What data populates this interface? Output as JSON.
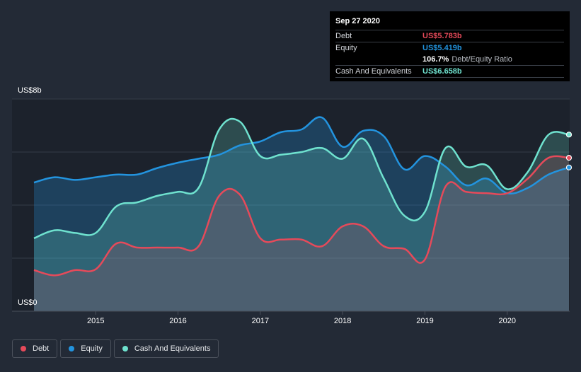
{
  "tooltip": {
    "date": "Sep 27 2020",
    "debt_label": "Debt",
    "debt_value": "US$5.783b",
    "equity_label": "Equity",
    "equity_value": "US$5.419b",
    "ratio_value": "106.7%",
    "ratio_label": "Debt/Equity Ratio",
    "cash_label": "Cash And Equivalents",
    "cash_value": "US$6.658b"
  },
  "colors": {
    "debt": "#e64a5a",
    "equity": "#2394df",
    "cash": "#6fe2cf",
    "background": "#232a36"
  },
  "chart_data": {
    "type": "area",
    "ylabel_top": "US$8b",
    "ylabel_bottom": "US$0",
    "ylim": [
      0,
      8
    ],
    "xlim": [
      2014.25,
      2020.75
    ],
    "x_ticks": [
      {
        "label": "2015",
        "value": 2015
      },
      {
        "label": "2016",
        "value": 2016
      },
      {
        "label": "2017",
        "value": 2017
      },
      {
        "label": "2018",
        "value": 2018
      },
      {
        "label": "2019",
        "value": 2019
      },
      {
        "label": "2020",
        "value": 2020
      }
    ],
    "series": [
      {
        "name": "Debt",
        "key": "debt",
        "points": [
          [
            2014.25,
            1.55
          ],
          [
            2014.5,
            1.35
          ],
          [
            2014.75,
            1.55
          ],
          [
            2015.0,
            1.58
          ],
          [
            2015.25,
            2.55
          ],
          [
            2015.5,
            2.4
          ],
          [
            2015.75,
            2.4
          ],
          [
            2016.0,
            2.4
          ],
          [
            2016.25,
            2.45
          ],
          [
            2016.5,
            4.35
          ],
          [
            2016.75,
            4.4
          ],
          [
            2017.0,
            2.75
          ],
          [
            2017.25,
            2.7
          ],
          [
            2017.5,
            2.7
          ],
          [
            2017.75,
            2.45
          ],
          [
            2018.0,
            3.2
          ],
          [
            2018.25,
            3.2
          ],
          [
            2018.5,
            2.45
          ],
          [
            2018.75,
            2.35
          ],
          [
            2019.0,
            1.95
          ],
          [
            2019.25,
            4.7
          ],
          [
            2019.5,
            4.5
          ],
          [
            2019.75,
            4.45
          ],
          [
            2020.0,
            4.45
          ],
          [
            2020.25,
            5.0
          ],
          [
            2020.5,
            5.78
          ],
          [
            2020.75,
            5.783
          ]
        ]
      },
      {
        "name": "Equity",
        "key": "equity",
        "points": [
          [
            2014.25,
            4.85
          ],
          [
            2014.5,
            5.05
          ],
          [
            2014.75,
            4.95
          ],
          [
            2015.0,
            5.05
          ],
          [
            2015.25,
            5.15
          ],
          [
            2015.5,
            5.15
          ],
          [
            2015.75,
            5.4
          ],
          [
            2016.0,
            5.6
          ],
          [
            2016.25,
            5.75
          ],
          [
            2016.5,
            5.9
          ],
          [
            2016.75,
            6.25
          ],
          [
            2017.0,
            6.4
          ],
          [
            2017.25,
            6.75
          ],
          [
            2017.5,
            6.85
          ],
          [
            2017.75,
            7.3
          ],
          [
            2018.0,
            6.2
          ],
          [
            2018.25,
            6.8
          ],
          [
            2018.5,
            6.6
          ],
          [
            2018.75,
            5.35
          ],
          [
            2019.0,
            5.85
          ],
          [
            2019.25,
            5.45
          ],
          [
            2019.5,
            4.75
          ],
          [
            2019.75,
            5.0
          ],
          [
            2020.0,
            4.45
          ],
          [
            2020.25,
            4.65
          ],
          [
            2020.5,
            5.15
          ],
          [
            2020.75,
            5.419
          ]
        ]
      },
      {
        "name": "Cash And Equivalents",
        "key": "cash",
        "points": [
          [
            2014.25,
            2.75
          ],
          [
            2014.5,
            3.05
          ],
          [
            2014.75,
            2.95
          ],
          [
            2015.0,
            2.95
          ],
          [
            2015.25,
            3.95
          ],
          [
            2015.5,
            4.1
          ],
          [
            2015.75,
            4.35
          ],
          [
            2016.0,
            4.5
          ],
          [
            2016.25,
            4.65
          ],
          [
            2016.5,
            6.85
          ],
          [
            2016.75,
            7.15
          ],
          [
            2017.0,
            5.85
          ],
          [
            2017.25,
            5.9
          ],
          [
            2017.5,
            6.0
          ],
          [
            2017.75,
            6.15
          ],
          [
            2018.0,
            5.75
          ],
          [
            2018.25,
            6.5
          ],
          [
            2018.5,
            5.0
          ],
          [
            2018.75,
            3.6
          ],
          [
            2019.0,
            3.75
          ],
          [
            2019.25,
            6.15
          ],
          [
            2019.5,
            5.45
          ],
          [
            2019.75,
            5.5
          ],
          [
            2020.0,
            4.6
          ],
          [
            2020.25,
            5.25
          ],
          [
            2020.5,
            6.65
          ],
          [
            2020.75,
            6.658
          ]
        ]
      }
    ]
  },
  "legend": [
    {
      "label": "Debt",
      "key": "debt"
    },
    {
      "label": "Equity",
      "key": "equity"
    },
    {
      "label": "Cash And Equivalents",
      "key": "cash"
    }
  ]
}
